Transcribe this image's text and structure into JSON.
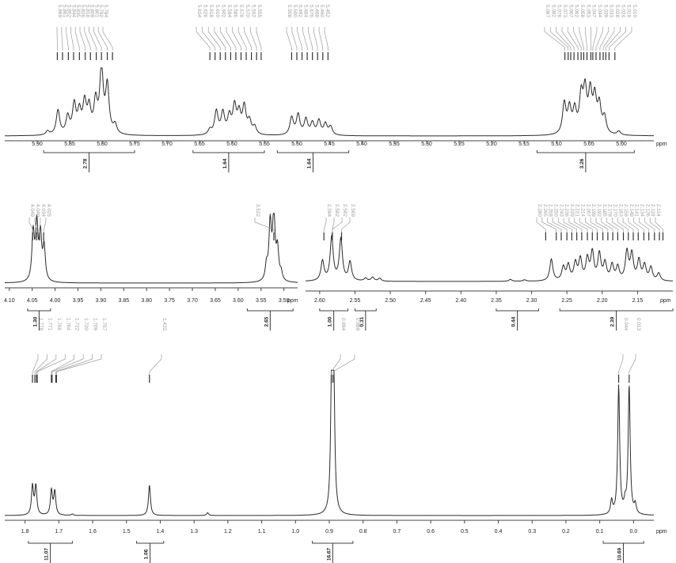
{
  "chart_data": [
    {
      "type": "line",
      "id": "p1",
      "xlabel": "ppm",
      "xlim": [
        5.95,
        4.95
      ],
      "ticks": [
        "5.90",
        "5.85",
        "5.80",
        "5.75",
        "5.70",
        "5.65",
        "5.60",
        "5.55",
        "5.50",
        "5.45",
        "5.40",
        "5.35",
        "5.30",
        "5.25",
        "5.20",
        "5.15",
        "5.10",
        "5.05",
        "5.00"
      ],
      "peak_labels": [
        [
          "5.869",
          "5.861",
          "5.852",
          "5.844",
          "5.835",
          "5.826",
          "5.818",
          "5.809",
          "5.801",
          "5.792",
          "5.784"
        ],
        [
          "5.634",
          "5.626",
          "5.618",
          "5.610",
          "5.602",
          "5.594",
          "5.586",
          "5.578",
          "5.570",
          "5.562",
          "5.555"
        ],
        [
          "5.508",
          "5.500",
          "5.492",
          "5.484",
          "5.476",
          "5.468",
          "5.460",
          "5.452"
        ],
        [
          "5.087",
          "5.082",
          "5.078",
          "5.073",
          "5.067",
          "5.062",
          "5.058",
          "5.053",
          "5.047",
          "5.044",
          "5.039",
          "5.033",
          "5.028",
          "5.024",
          "5.019",
          "5.010"
        ]
      ],
      "integrals": [
        {
          "range": [
            5.89,
            5.75
          ],
          "value": "2.78"
        },
        {
          "range": [
            5.66,
            5.55
          ],
          "value": "1.64"
        },
        {
          "range": [
            5.53,
            5.42
          ],
          "value": "1.64"
        },
        {
          "range": [
            5.13,
            4.98
          ],
          "value": "3.26"
        }
      ],
      "peaks": [
        [
          5.884,
          0.06
        ],
        [
          5.868,
          0.38
        ],
        [
          5.853,
          0.27
        ],
        [
          5.843,
          0.45
        ],
        [
          5.835,
          0.33
        ],
        [
          5.827,
          0.46
        ],
        [
          5.82,
          0.38
        ],
        [
          5.81,
          0.48
        ],
        [
          5.801,
          1.0
        ],
        [
          5.792,
          0.73
        ],
        [
          5.78,
          0.14
        ],
        [
          5.634,
          0.08
        ],
        [
          5.624,
          0.36
        ],
        [
          5.614,
          0.33
        ],
        [
          5.604,
          0.27
        ],
        [
          5.596,
          0.42
        ],
        [
          5.589,
          0.31
        ],
        [
          5.581,
          0.42
        ],
        [
          5.573,
          0.2
        ],
        [
          5.565,
          0.12
        ],
        [
          5.508,
          0.27
        ],
        [
          5.498,
          0.31
        ],
        [
          5.486,
          0.24
        ],
        [
          5.476,
          0.18
        ],
        [
          5.466,
          0.22
        ],
        [
          5.456,
          0.17
        ],
        [
          5.448,
          0.13
        ],
        [
          5.088,
          0.47
        ],
        [
          5.08,
          0.38
        ],
        [
          5.072,
          0.35
        ],
        [
          5.062,
          0.55
        ],
        [
          5.056,
          0.62
        ],
        [
          5.048,
          0.6
        ],
        [
          5.041,
          0.52
        ],
        [
          5.034,
          0.42
        ],
        [
          5.026,
          0.25
        ],
        [
          5.004,
          0.06
        ]
      ]
    },
    {
      "type": "line",
      "id": "p2",
      "xlabel": "ppm",
      "xlim": [
        4.11,
        3.47
      ],
      "ticks": [
        "4.10",
        "4.05",
        "4.00",
        "3.95",
        "3.90",
        "3.85",
        "3.80",
        "3.75",
        "3.70",
        "3.65",
        "3.60",
        "3.55",
        "3.50"
      ],
      "peak_labels": [
        [
          "4.049",
          "4.040",
          "4.034",
          "4.025"
        ],
        [
          "3.522"
        ]
      ],
      "integrals": [
        {
          "range": [
            4.06,
            4.01
          ],
          "value": "1.30"
        },
        {
          "range": [
            3.58,
            3.48
          ],
          "value": "2.65"
        }
      ],
      "peaks": [
        [
          4.048,
          0.72
        ],
        [
          4.04,
          0.82
        ],
        [
          4.032,
          0.66
        ],
        [
          4.024,
          0.5
        ],
        [
          3.538,
          0.22
        ],
        [
          3.53,
          0.85
        ],
        [
          3.522,
          1.0
        ],
        [
          3.514,
          0.46
        ],
        [
          3.506,
          0.12
        ]
      ]
    },
    {
      "type": "line",
      "id": "p3",
      "xlabel": "ppm",
      "xlim": [
        2.62,
        2.1
      ],
      "ticks": [
        "2.60",
        "2.55",
        "2.50",
        "2.45",
        "2.40",
        "2.35",
        "2.30",
        "2.25",
        "2.20",
        "2.15"
      ],
      "peak_labels": [
        [
          "2.594",
          "2.582",
          "2.582",
          "2.569"
        ],
        [
          "2.280",
          "2.265",
          "2.258",
          "2.250",
          "2.243",
          "2.236",
          "2.229",
          "2.221",
          "2.214",
          "2.207",
          "2.199",
          "2.192",
          "2.185",
          "2.178",
          "2.170",
          "2.163",
          "2.156",
          "2.149",
          "2.141",
          "2.134",
          "2.126",
          "2.119",
          "2.114"
        ]
      ],
      "integrals": [
        {
          "range": [
            2.6,
            2.56
          ],
          "value": "1.00"
        },
        {
          "range": [
            2.55,
            2.52
          ],
          "value": "0.31"
        },
        {
          "range": [
            2.35,
            2.29
          ],
          "value": "0.44"
        },
        {
          "range": [
            2.26,
            2.1
          ],
          "value": "2.39"
        }
      ],
      "peaks": [
        [
          2.596,
          0.42
        ],
        [
          2.583,
          0.92
        ],
        [
          2.57,
          0.88
        ],
        [
          2.557,
          0.4
        ],
        [
          2.535,
          0.06
        ],
        [
          2.525,
          0.08
        ],
        [
          2.515,
          0.06
        ],
        [
          2.33,
          0.04
        ],
        [
          2.31,
          0.03
        ],
        [
          2.272,
          0.46
        ],
        [
          2.255,
          0.28
        ],
        [
          2.248,
          0.32
        ],
        [
          2.238,
          0.36
        ],
        [
          2.231,
          0.44
        ],
        [
          2.221,
          0.44
        ],
        [
          2.214,
          0.58
        ],
        [
          2.204,
          0.55
        ],
        [
          2.196,
          0.36
        ],
        [
          2.186,
          0.32
        ],
        [
          2.178,
          0.28
        ],
        [
          2.165,
          0.6
        ],
        [
          2.158,
          0.55
        ],
        [
          2.148,
          0.42
        ],
        [
          2.14,
          0.32
        ],
        [
          2.131,
          0.28
        ],
        [
          2.12,
          0.16
        ]
      ]
    },
    {
      "type": "line",
      "id": "p4",
      "xlabel": "ppm",
      "xlim": [
        1.86,
        -0.06
      ],
      "ticks": [
        "1.8",
        "1.7",
        "1.6",
        "1.5",
        "1.4",
        "1.3",
        "1.2",
        "1.1",
        "1.0",
        "0.9",
        "0.8",
        "0.7",
        "0.6",
        "0.5",
        "0.4",
        "0.3",
        "0.2",
        "0.1",
        "0.0"
      ],
      "peak_labels": [
        [
          "1.778",
          "1.771",
          "1.766",
          "1.764",
          "1.722",
          "1.720",
          "1.709",
          "1.707"
        ],
        [
          "1.432"
        ],
        [
          "0.894",
          "0.889"
        ],
        [
          "0.044",
          "0.013"
        ]
      ],
      "integrals": [
        {
          "range": [
            1.79,
            1.66
          ],
          "value": "11.07"
        },
        {
          "range": [
            1.47,
            1.39
          ],
          "value": "1.06"
        },
        {
          "range": [
            0.95,
            0.83
          ],
          "value": "16.67"
        },
        {
          "range": [
            0.09,
            -0.03
          ],
          "value": "10.69"
        }
      ],
      "peaks": [
        [
          1.778,
          0.21
        ],
        [
          1.768,
          0.21
        ],
        [
          1.722,
          0.18
        ],
        [
          1.712,
          0.17
        ],
        [
          1.66,
          0.01
        ],
        [
          1.432,
          0.22
        ],
        [
          1.26,
          0.02
        ],
        [
          0.893,
          0.97
        ],
        [
          0.887,
          0.98
        ],
        [
          0.065,
          0.1
        ],
        [
          0.044,
          0.93
        ],
        [
          0.025,
          0.07
        ],
        [
          0.013,
          0.93
        ],
        [
          -0.005,
          0.07
        ]
      ]
    }
  ]
}
